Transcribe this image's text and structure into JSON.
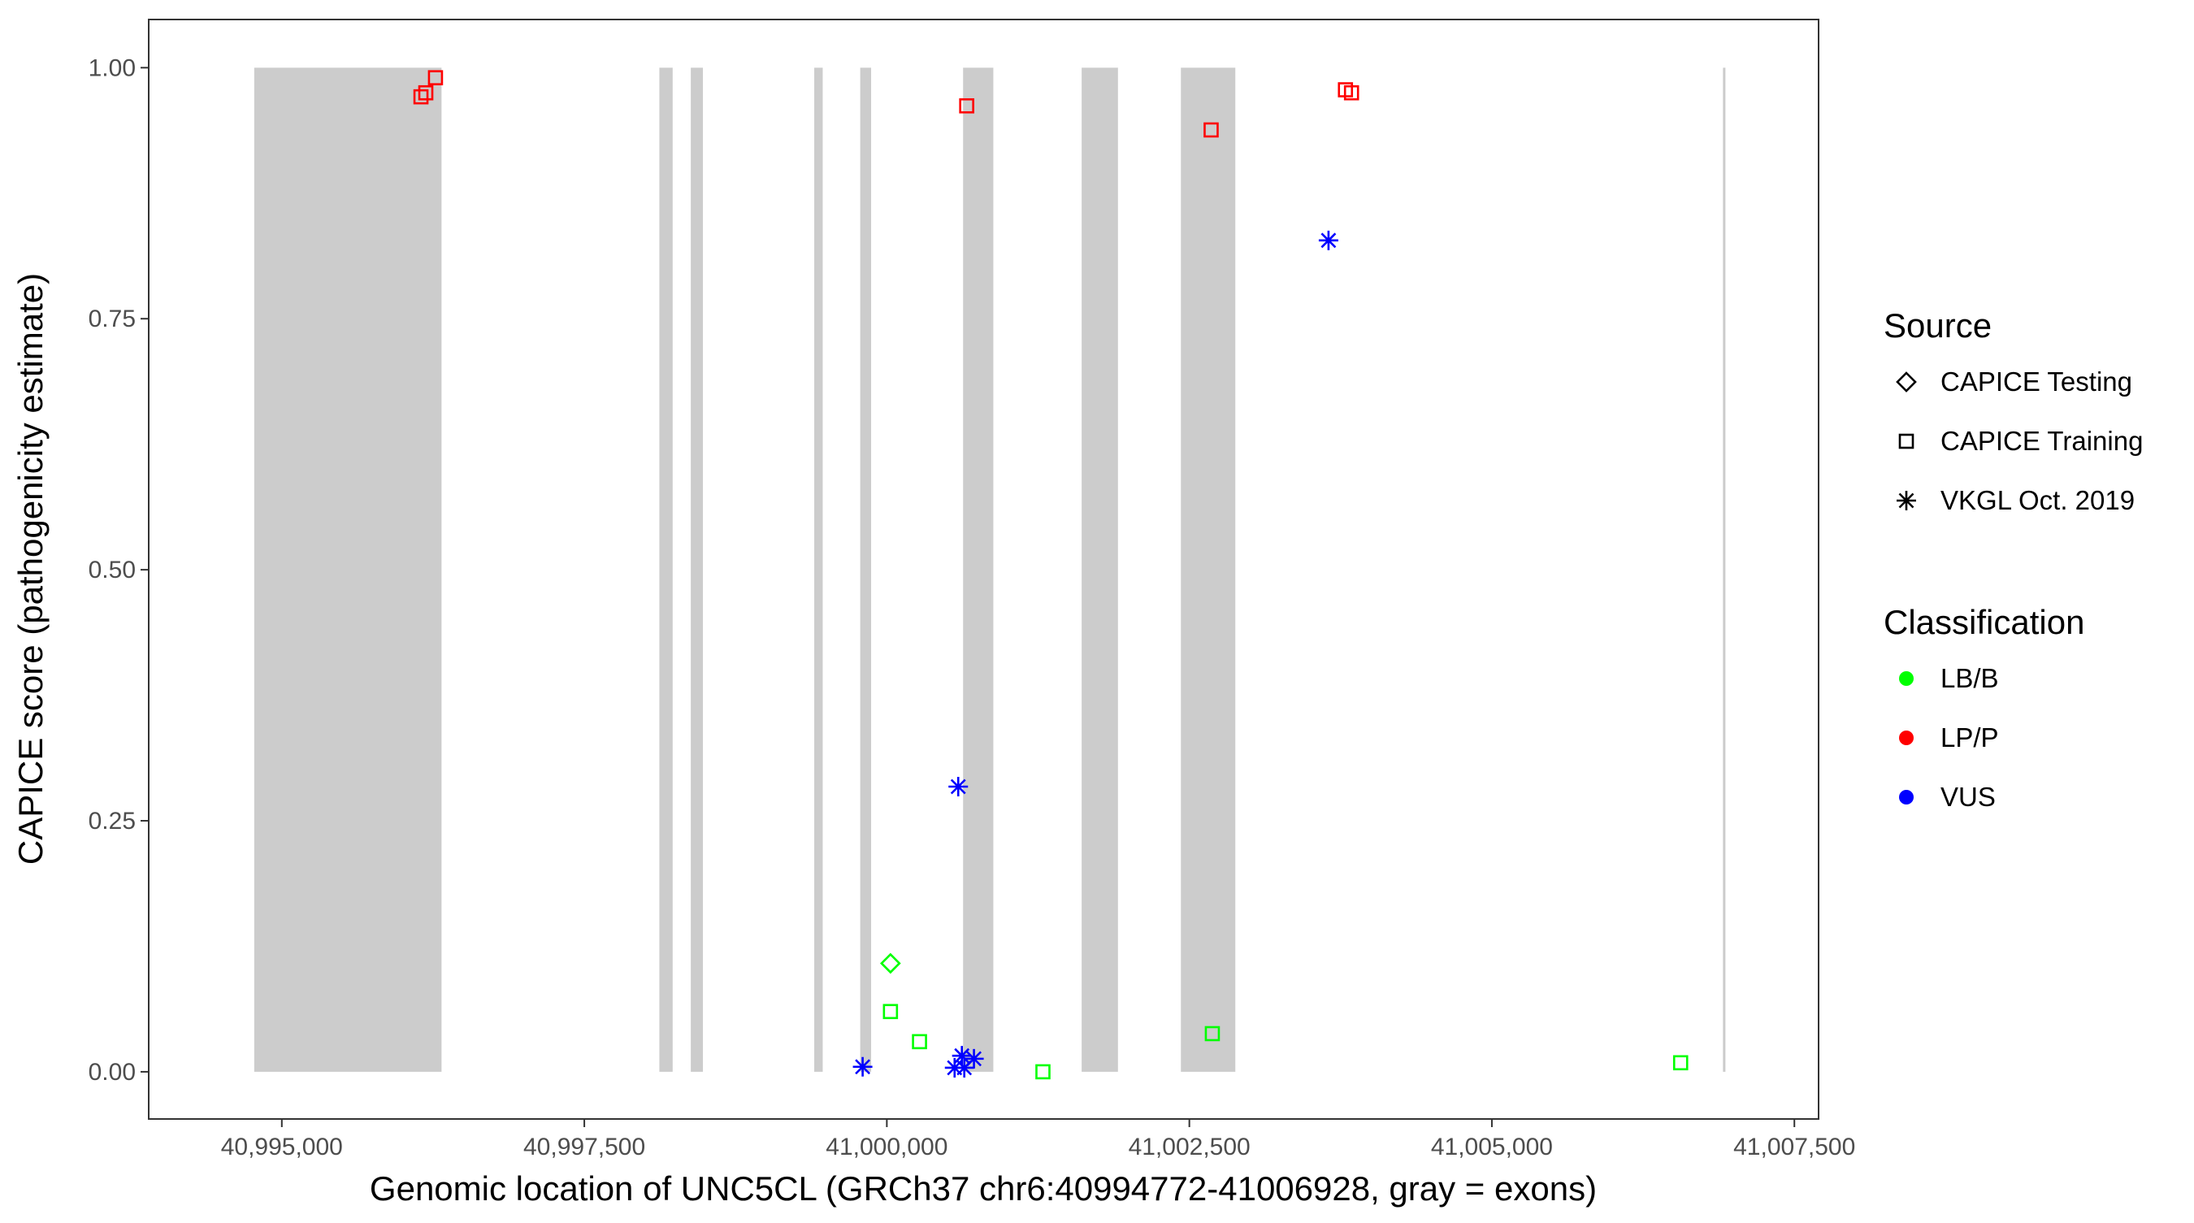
{
  "chart_data": {
    "type": "scatter",
    "title": "",
    "xlabel": "Genomic location of UNC5CL (GRCh37 chr6:40994772-41006928, gray = exons)",
    "ylabel": "CAPICE score (pathogenicity estimate)",
    "xlim": [
      40993900,
      41007700
    ],
    "ylim": [
      -0.047,
      1.048
    ],
    "xticks": [
      {
        "value": 40995000,
        "label": "40,995,000"
      },
      {
        "value": 40997500,
        "label": "40,997,500"
      },
      {
        "value": 41000000,
        "label": "41,000,000"
      },
      {
        "value": 41002500,
        "label": "41,002,500"
      },
      {
        "value": 41005000,
        "label": "41,005,000"
      },
      {
        "value": 41007500,
        "label": "41,007,500"
      }
    ],
    "yticks": [
      {
        "value": 0.0,
        "label": "0.00"
      },
      {
        "value": 0.25,
        "label": "0.25"
      },
      {
        "value": 0.5,
        "label": "0.50"
      },
      {
        "value": 0.75,
        "label": "0.75"
      },
      {
        "value": 1.0,
        "label": "1.00"
      }
    ],
    "grid": false,
    "exon_color": "#cccccc",
    "exons": [
      [
        40994772,
        40996320
      ],
      [
        40998120,
        40998230
      ],
      [
        40998380,
        40998480
      ],
      [
        40999400,
        40999470
      ],
      [
        40999780,
        40999870
      ],
      [
        41000630,
        41000880
      ],
      [
        41001610,
        41001910
      ],
      [
        41002430,
        41002880
      ],
      [
        41006910,
        41006928
      ]
    ],
    "series": [
      {
        "source": "CAPICE Training",
        "classification": "LP/P",
        "marker": "square",
        "color": "#ff0000",
        "points": [
          [
            40996150,
            0.971
          ],
          [
            40996190,
            0.975
          ],
          [
            40996270,
            0.99
          ],
          [
            41000660,
            0.962
          ],
          [
            41002680,
            0.938
          ],
          [
            41003790,
            0.978
          ],
          [
            41003840,
            0.975
          ]
        ]
      },
      {
        "source": "CAPICE Training",
        "classification": "LB/B",
        "marker": "square",
        "color": "#00ff00",
        "points": [
          [
            41000030,
            0.06
          ],
          [
            41000270,
            0.03
          ],
          [
            41001290,
            0.0
          ],
          [
            41002690,
            0.038
          ],
          [
            41006560,
            0.009
          ]
        ]
      },
      {
        "source": "CAPICE Testing",
        "classification": "LB/B",
        "marker": "diamond",
        "color": "#00ff00",
        "points": [
          [
            41000030,
            0.108
          ]
        ]
      },
      {
        "source": "VKGL Oct. 2019",
        "classification": "VUS",
        "marker": "asterisk",
        "color": "#0000ff",
        "points": [
          [
            40999800,
            0.005
          ],
          [
            41000560,
            0.004
          ],
          [
            41000590,
            0.284
          ],
          [
            41000620,
            0.016
          ],
          [
            41000640,
            0.004
          ],
          [
            41000720,
            0.013
          ],
          [
            41003650,
            0.828
          ]
        ]
      }
    ],
    "legend": {
      "position": "right",
      "source_title": "Source",
      "source_items": [
        {
          "label": "CAPICE Testing",
          "marker": "diamond"
        },
        {
          "label": "CAPICE Training",
          "marker": "square"
        },
        {
          "label": "VKGL Oct. 2019",
          "marker": "asterisk"
        }
      ],
      "class_title": "Classification",
      "class_items": [
        {
          "label": "LB/B",
          "color": "#00ff00"
        },
        {
          "label": "LP/P",
          "color": "#ff0000"
        },
        {
          "label": "VUS",
          "color": "#0000ff"
        }
      ]
    }
  }
}
